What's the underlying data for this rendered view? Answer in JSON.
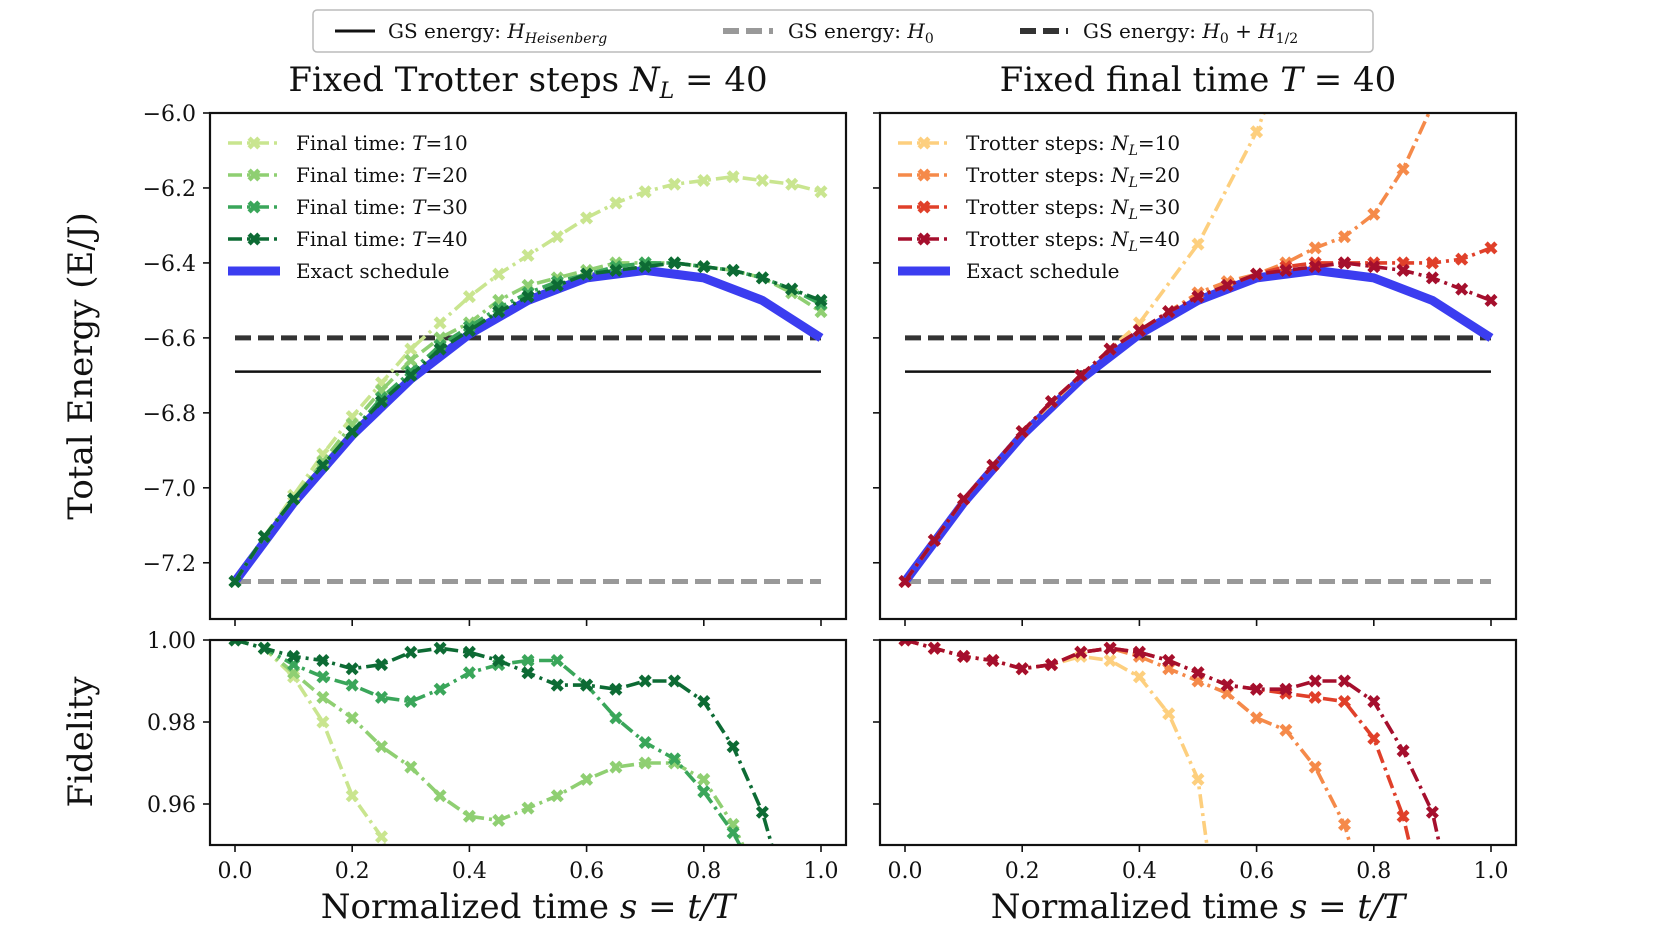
{
  "top_legend": [
    {
      "label": "GS energy: H_Heisenberg",
      "color": "#111111",
      "dash": "solid"
    },
    {
      "label": "GS energy: H_0",
      "color": "#999999",
      "dash": "dashed"
    },
    {
      "label": "GS energy: H_0 + H_1/2",
      "color": "#333333",
      "dash": "dashed"
    }
  ],
  "xlabel": "Normalized time s = t/T",
  "energy_ylabel": "Total Energy (E/J)",
  "fidelity_ylabel": "Fidelity",
  "chart_data": [
    {
      "type": "line",
      "panel": "left-energy",
      "title": "Fixed Trotter steps N_L = 40",
      "xlim": [
        0,
        1
      ],
      "ylim": [
        -7.35,
        -6.0
      ],
      "xticks": [
        "0.0",
        "0.2",
        "0.4",
        "0.6",
        "0.8",
        "1.0"
      ],
      "yticks": [
        "-6.0",
        "-6.2",
        "-6.4",
        "-6.6",
        "-6.8",
        "-7.0",
        "-7.2"
      ],
      "legend_position": "top-left",
      "hlines": [
        {
          "name": "GS energy: H_Heisenberg",
          "y": -6.69,
          "color": "#111111",
          "dash": "solid"
        },
        {
          "name": "GS energy: H_0",
          "y": -7.25,
          "color": "#999999",
          "dash": "dashed"
        },
        {
          "name": "GS energy: H_0 + H_1/2",
          "y": -6.6,
          "color": "#333333",
          "dash": "dashed"
        }
      ],
      "series": [
        {
          "name": "Final time: T=10",
          "color": "#c9e58f",
          "x": [
            0,
            0.05,
            0.1,
            0.15,
            0.2,
            0.25,
            0.3,
            0.35,
            0.4,
            0.45,
            0.5,
            0.55,
            0.6,
            0.65,
            0.7,
            0.75,
            0.8,
            0.85,
            0.9,
            0.95,
            1.0
          ],
          "y": [
            -7.25,
            -7.13,
            -7.02,
            -6.91,
            -6.81,
            -6.72,
            -6.63,
            -6.56,
            -6.49,
            -6.43,
            -6.38,
            -6.33,
            -6.28,
            -6.24,
            -6.21,
            -6.19,
            -6.18,
            -6.17,
            -6.18,
            -6.19,
            -6.21
          ]
        },
        {
          "name": "Final time: T=20",
          "color": "#8fcf72",
          "x": [
            0,
            0.05,
            0.1,
            0.15,
            0.2,
            0.25,
            0.3,
            0.35,
            0.4,
            0.45,
            0.5,
            0.55,
            0.6,
            0.65,
            0.7,
            0.75,
            0.8,
            0.85,
            0.9,
            0.95,
            1.0
          ],
          "y": [
            -7.25,
            -7.13,
            -7.03,
            -6.93,
            -6.83,
            -6.74,
            -6.66,
            -6.6,
            -6.56,
            -6.5,
            -6.46,
            -6.44,
            -6.42,
            -6.4,
            -6.4,
            -6.4,
            -6.41,
            -6.42,
            -6.44,
            -6.48,
            -6.53
          ]
        },
        {
          "name": "Final time: T=30",
          "color": "#3aa65a",
          "x": [
            0,
            0.05,
            0.1,
            0.15,
            0.2,
            0.25,
            0.3,
            0.35,
            0.4,
            0.45,
            0.5,
            0.55,
            0.6,
            0.65,
            0.7,
            0.75,
            0.8,
            0.85,
            0.9,
            0.95,
            1.0
          ],
          "y": [
            -7.25,
            -7.13,
            -7.03,
            -6.94,
            -6.85,
            -6.76,
            -6.69,
            -6.62,
            -6.57,
            -6.52,
            -6.48,
            -6.45,
            -6.43,
            -6.41,
            -6.4,
            -6.4,
            -6.41,
            -6.42,
            -6.44,
            -6.47,
            -6.51
          ]
        },
        {
          "name": "Final time: T=40",
          "color": "#0d6b34",
          "x": [
            0,
            0.05,
            0.1,
            0.15,
            0.2,
            0.25,
            0.3,
            0.35,
            0.4,
            0.45,
            0.5,
            0.55,
            0.6,
            0.65,
            0.7,
            0.75,
            0.8,
            0.85,
            0.9,
            0.95,
            1.0
          ],
          "y": [
            -7.25,
            -7.13,
            -7.03,
            -6.94,
            -6.85,
            -6.77,
            -6.7,
            -6.63,
            -6.58,
            -6.53,
            -6.49,
            -6.46,
            -6.43,
            -6.42,
            -6.41,
            -6.4,
            -6.41,
            -6.42,
            -6.44,
            -6.47,
            -6.5
          ]
        }
      ],
      "exact_schedule": {
        "name": "Exact schedule",
        "color": "#3b3df0",
        "x": [
          0,
          0.1,
          0.2,
          0.3,
          0.4,
          0.5,
          0.6,
          0.7,
          0.8,
          0.9,
          1.0
        ],
        "y": [
          -7.25,
          -7.04,
          -6.86,
          -6.71,
          -6.59,
          -6.5,
          -6.44,
          -6.42,
          -6.44,
          -6.5,
          -6.6
        ]
      }
    },
    {
      "type": "line",
      "panel": "right-energy",
      "title": "Fixed final time T = 40",
      "xlim": [
        0,
        1
      ],
      "ylim": [
        -7.35,
        -6.0
      ],
      "xticks": [
        "0.0",
        "0.2",
        "0.4",
        "0.6",
        "0.8",
        "1.0"
      ],
      "legend_position": "top-left",
      "hlines": [
        {
          "name": "GS energy: H_Heisenberg",
          "y": -6.69,
          "color": "#111111",
          "dash": "solid"
        },
        {
          "name": "GS energy: H_0",
          "y": -7.25,
          "color": "#999999",
          "dash": "dashed"
        },
        {
          "name": "GS energy: H_0 + H_1/2",
          "y": -6.6,
          "color": "#333333",
          "dash": "dashed"
        }
      ],
      "series": [
        {
          "name": "Trotter steps: N_L=10",
          "color": "#fdcf7e",
          "x": [
            0,
            0.1,
            0.2,
            0.3,
            0.4,
            0.5,
            0.6,
            0.65
          ],
          "y": [
            -7.25,
            -7.03,
            -6.85,
            -6.7,
            -6.56,
            -6.35,
            -6.05,
            -5.85
          ]
        },
        {
          "name": "Trotter steps: N_L=20",
          "color": "#f58a4a",
          "x": [
            0,
            0.05,
            0.1,
            0.15,
            0.2,
            0.25,
            0.3,
            0.35,
            0.4,
            0.45,
            0.5,
            0.55,
            0.6,
            0.65,
            0.7,
            0.75,
            0.8,
            0.85,
            0.9
          ],
          "y": [
            -7.25,
            -7.14,
            -7.03,
            -6.94,
            -6.85,
            -6.77,
            -6.7,
            -6.63,
            -6.58,
            -6.53,
            -6.48,
            -6.45,
            -6.43,
            -6.4,
            -6.36,
            -6.33,
            -6.27,
            -6.15,
            -5.98
          ]
        },
        {
          "name": "Trotter steps: N_L=30",
          "color": "#e0402a",
          "x": [
            0,
            0.05,
            0.1,
            0.15,
            0.2,
            0.25,
            0.3,
            0.35,
            0.4,
            0.45,
            0.5,
            0.55,
            0.6,
            0.65,
            0.7,
            0.75,
            0.8,
            0.85,
            0.9,
            0.95,
            1.0
          ],
          "y": [
            -7.25,
            -7.14,
            -7.03,
            -6.94,
            -6.85,
            -6.77,
            -6.7,
            -6.63,
            -6.58,
            -6.53,
            -6.49,
            -6.46,
            -6.43,
            -6.41,
            -6.4,
            -6.4,
            -6.4,
            -6.4,
            -6.4,
            -6.39,
            -6.36
          ]
        },
        {
          "name": "Trotter steps: N_L=40",
          "color": "#a50f2d",
          "x": [
            0,
            0.05,
            0.1,
            0.15,
            0.2,
            0.25,
            0.3,
            0.35,
            0.4,
            0.45,
            0.5,
            0.55,
            0.6,
            0.65,
            0.7,
            0.75,
            0.8,
            0.85,
            0.9,
            0.95,
            1.0
          ],
          "y": [
            -7.25,
            -7.14,
            -7.03,
            -6.94,
            -6.85,
            -6.77,
            -6.7,
            -6.63,
            -6.58,
            -6.53,
            -6.49,
            -6.46,
            -6.43,
            -6.42,
            -6.41,
            -6.4,
            -6.41,
            -6.42,
            -6.44,
            -6.47,
            -6.5
          ]
        }
      ],
      "exact_schedule": {
        "name": "Exact schedule",
        "color": "#3b3df0",
        "x": [
          0,
          0.1,
          0.2,
          0.3,
          0.4,
          0.5,
          0.6,
          0.7,
          0.8,
          0.9,
          1.0
        ],
        "y": [
          -7.25,
          -7.04,
          -6.86,
          -6.71,
          -6.59,
          -6.5,
          -6.44,
          -6.42,
          -6.44,
          -6.5,
          -6.6
        ]
      }
    },
    {
      "type": "line",
      "panel": "left-fidelity",
      "xlim": [
        0,
        1
      ],
      "ylim": [
        0.95,
        1.0
      ],
      "yticks": [
        "1.00",
        "0.98",
        "0.96"
      ],
      "series": [
        {
          "name": "Final time: T=10",
          "color": "#c9e58f",
          "x": [
            0,
            0.05,
            0.1,
            0.15,
            0.2,
            0.25,
            0.3
          ],
          "y": [
            1.0,
            0.998,
            0.991,
            0.98,
            0.962,
            0.952,
            0.93
          ]
        },
        {
          "name": "Final time: T=20",
          "color": "#8fcf72",
          "x": [
            0,
            0.05,
            0.1,
            0.15,
            0.2,
            0.25,
            0.3,
            0.35,
            0.4,
            0.45,
            0.5,
            0.55,
            0.6,
            0.65,
            0.7,
            0.75,
            0.8,
            0.85,
            0.9
          ],
          "y": [
            1.0,
            0.998,
            0.992,
            0.986,
            0.981,
            0.974,
            0.969,
            0.962,
            0.957,
            0.956,
            0.959,
            0.962,
            0.966,
            0.969,
            0.97,
            0.97,
            0.966,
            0.955,
            0.94
          ]
        },
        {
          "name": "Final time: T=30",
          "color": "#3aa65a",
          "x": [
            0,
            0.05,
            0.1,
            0.15,
            0.2,
            0.25,
            0.3,
            0.35,
            0.4,
            0.45,
            0.5,
            0.55,
            0.6,
            0.65,
            0.7,
            0.75,
            0.8,
            0.85,
            0.9
          ],
          "y": [
            1.0,
            0.998,
            0.994,
            0.991,
            0.989,
            0.986,
            0.985,
            0.988,
            0.992,
            0.994,
            0.995,
            0.995,
            0.989,
            0.981,
            0.975,
            0.971,
            0.963,
            0.953,
            0.94
          ]
        },
        {
          "name": "Final time: T=40",
          "color": "#0d6b34",
          "x": [
            0,
            0.05,
            0.1,
            0.15,
            0.2,
            0.25,
            0.3,
            0.35,
            0.4,
            0.45,
            0.5,
            0.55,
            0.6,
            0.65,
            0.7,
            0.75,
            0.8,
            0.85,
            0.9,
            0.92
          ],
          "y": [
            1.0,
            0.998,
            0.996,
            0.995,
            0.993,
            0.994,
            0.997,
            0.998,
            0.997,
            0.995,
            0.992,
            0.989,
            0.989,
            0.988,
            0.99,
            0.99,
            0.985,
            0.974,
            0.958,
            0.948
          ]
        }
      ]
    },
    {
      "type": "line",
      "panel": "right-fidelity",
      "xlim": [
        0,
        1
      ],
      "ylim": [
        0.95,
        1.0
      ],
      "series": [
        {
          "name": "Trotter steps: N_L=10",
          "color": "#fdcf7e",
          "x": [
            0,
            0.05,
            0.1,
            0.15,
            0.2,
            0.25,
            0.3,
            0.35,
            0.4,
            0.45,
            0.5,
            0.52
          ],
          "y": [
            1.0,
            0.998,
            0.996,
            0.995,
            0.993,
            0.994,
            0.996,
            0.995,
            0.991,
            0.982,
            0.966,
            0.945
          ]
        },
        {
          "name": "Trotter steps: N_L=20",
          "color": "#f58a4a",
          "x": [
            0,
            0.05,
            0.1,
            0.15,
            0.2,
            0.25,
            0.3,
            0.35,
            0.4,
            0.45,
            0.5,
            0.55,
            0.6,
            0.65,
            0.7,
            0.75,
            0.77
          ],
          "y": [
            1.0,
            0.998,
            0.996,
            0.995,
            0.993,
            0.994,
            0.997,
            0.998,
            0.996,
            0.993,
            0.99,
            0.987,
            0.981,
            0.978,
            0.969,
            0.955,
            0.945
          ]
        },
        {
          "name": "Trotter steps: N_L=30",
          "color": "#e0402a",
          "x": [
            0,
            0.05,
            0.1,
            0.15,
            0.2,
            0.25,
            0.3,
            0.35,
            0.4,
            0.45,
            0.5,
            0.55,
            0.6,
            0.65,
            0.7,
            0.75,
            0.8,
            0.85,
            0.87
          ],
          "y": [
            1.0,
            0.998,
            0.996,
            0.995,
            0.993,
            0.994,
            0.997,
            0.998,
            0.997,
            0.995,
            0.992,
            0.989,
            0.988,
            0.987,
            0.986,
            0.985,
            0.976,
            0.957,
            0.945
          ]
        },
        {
          "name": "Trotter steps: N_L=40",
          "color": "#a50f2d",
          "x": [
            0,
            0.05,
            0.1,
            0.15,
            0.2,
            0.25,
            0.3,
            0.35,
            0.4,
            0.45,
            0.5,
            0.55,
            0.6,
            0.65,
            0.7,
            0.75,
            0.8,
            0.85,
            0.9,
            0.92
          ],
          "y": [
            1.0,
            0.998,
            0.996,
            0.995,
            0.993,
            0.994,
            0.997,
            0.998,
            0.997,
            0.995,
            0.992,
            0.989,
            0.988,
            0.988,
            0.99,
            0.99,
            0.985,
            0.973,
            0.958,
            0.945
          ]
        }
      ]
    }
  ]
}
